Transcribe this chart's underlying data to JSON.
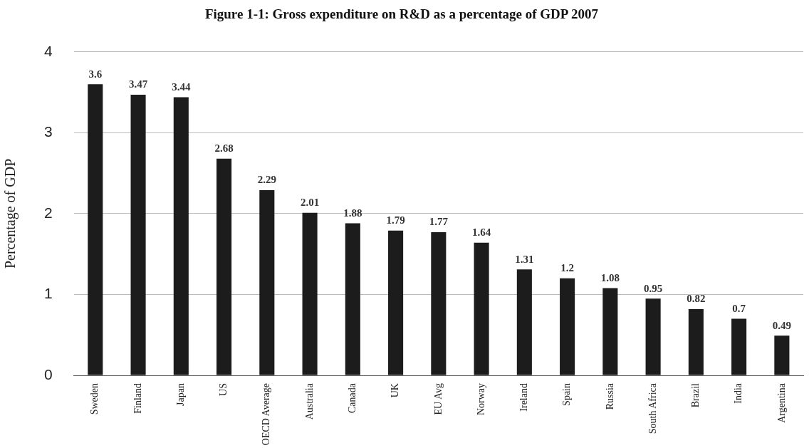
{
  "chart_data": {
    "type": "bar",
    "title": "Figure 1-1: Gross expenditure on R&D as a percentage of GDP 2007",
    "ylabel": "Percentage of GDP",
    "categories": [
      "Sweden",
      "Finland",
      "Japan",
      "US",
      "OECD Average",
      "Australia",
      "Canada",
      "UK",
      "EU Avg",
      "Norway",
      "Ireland",
      "Spain",
      "Russia",
      "South Africa",
      "Brazil",
      "India",
      "Argentina"
    ],
    "values": [
      3.6,
      3.47,
      3.44,
      2.68,
      2.29,
      2.01,
      1.88,
      1.79,
      1.77,
      1.64,
      1.31,
      1.2,
      1.08,
      0.95,
      0.82,
      0.7,
      0.49
    ],
    "color": "#1c1c1c",
    "ylim": [
      0,
      4
    ],
    "yticks": [
      0,
      1,
      2,
      3,
      4
    ],
    "grid": "y",
    "data_labels": true,
    "legend": false
  }
}
